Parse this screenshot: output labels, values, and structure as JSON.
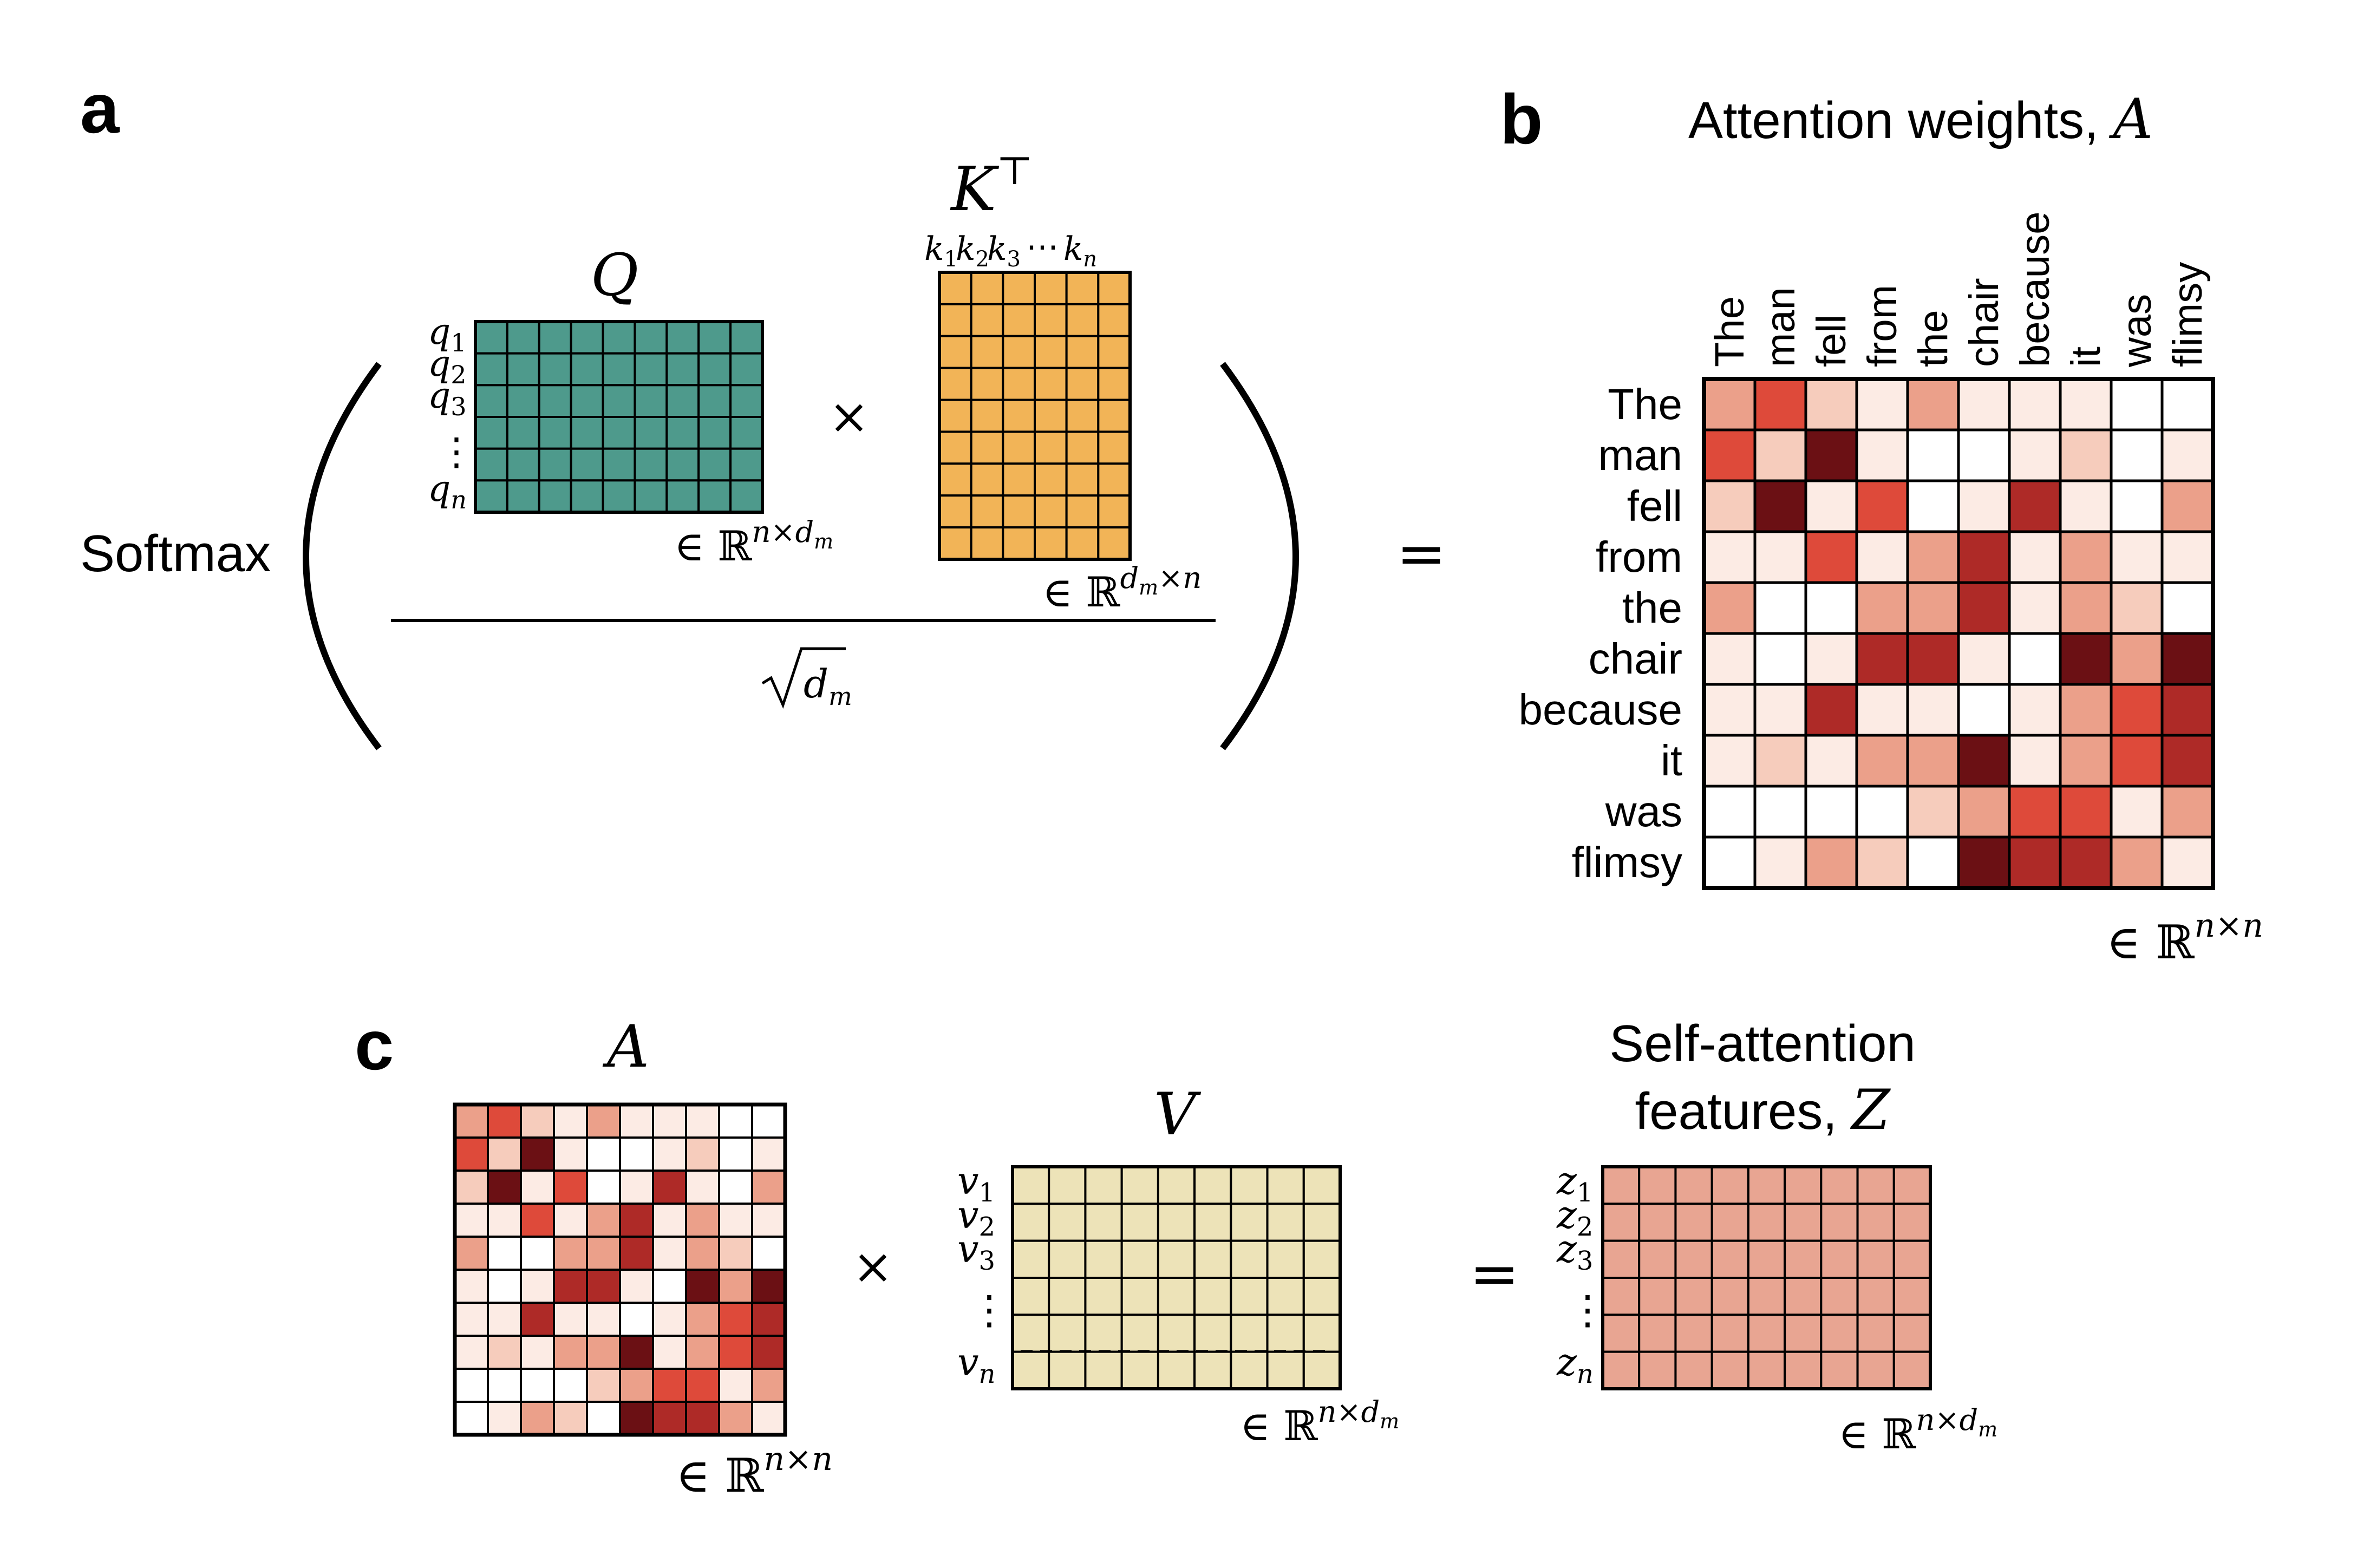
{
  "panels": {
    "a": {
      "letter": "a"
    },
    "b": {
      "letter": "b"
    },
    "c": {
      "letter": "c"
    }
  },
  "softmax": {
    "label": "Softmax"
  },
  "Q": {
    "label": "Q",
    "rows": 6,
    "cols": 9,
    "color": "#4E9A8C",
    "row_labels": [
      [
        "q",
        "1"
      ],
      [
        "q",
        "2"
      ],
      [
        "q",
        "3"
      ],
      [
        "⋮",
        ""
      ],
      [
        "q",
        "n"
      ]
    ],
    "dims": "∈ ℝ",
    "dims_sup": "n×d",
    "dims_sup_sub": "m"
  },
  "times_a": "×",
  "K": {
    "label": "K",
    "sup": "⊤",
    "rows": 9,
    "cols": 6,
    "color": "#F2B457",
    "col_labels": [
      [
        "k",
        "1"
      ],
      [
        "k",
        "2"
      ],
      [
        "k",
        "3"
      ],
      [
        "⋯",
        ""
      ],
      [
        "k",
        "n"
      ]
    ],
    "dims": "∈ ℝ",
    "dims_sup_a": "d",
    "dims_sup_sub": "m",
    "dims_sup_b": "×n"
  },
  "denominator": {
    "sqrt_symbol": "√",
    "var": "d",
    "sub": "m"
  },
  "equals_a": "=",
  "attention": {
    "title_text": "Attention weights, ",
    "title_var": "A",
    "tokens": [
      "The",
      "man",
      "fell",
      "from",
      "the",
      "chair",
      "because",
      "it",
      "was",
      "flimsy"
    ],
    "palette": [
      "#FFFFFF",
      "#FCEBE4",
      "#F6CCBC",
      "#EBA08A",
      "#DE4A3A",
      "#AE2A27",
      "#6B1014"
    ],
    "matrix": [
      [
        3,
        4,
        2,
        1,
        3,
        1,
        1,
        1,
        0,
        0
      ],
      [
        4,
        2,
        6,
        1,
        0,
        0,
        1,
        2,
        0,
        1
      ],
      [
        2,
        6,
        1,
        4,
        0,
        1,
        5,
        1,
        0,
        3
      ],
      [
        1,
        1,
        4,
        1,
        3,
        5,
        1,
        3,
        1,
        1
      ],
      [
        3,
        0,
        0,
        3,
        3,
        5,
        1,
        3,
        2,
        0
      ],
      [
        1,
        0,
        1,
        5,
        5,
        1,
        0,
        6,
        3,
        6
      ],
      [
        1,
        1,
        5,
        1,
        1,
        0,
        1,
        3,
        4,
        5
      ],
      [
        1,
        2,
        1,
        3,
        3,
        6,
        1,
        3,
        4,
        5
      ],
      [
        0,
        0,
        0,
        0,
        2,
        3,
        4,
        4,
        1,
        3
      ],
      [
        0,
        1,
        3,
        2,
        0,
        6,
        5,
        5,
        3,
        1
      ]
    ],
    "dims": "∈ ℝ",
    "dims_sup": "n×n"
  },
  "panel_c": {
    "A_label": "A",
    "A_dims": "∈ ℝ",
    "A_dims_sup": "n×n",
    "times": "×",
    "V": {
      "label": "V",
      "rows": 6,
      "cols": 9,
      "color": "#EDE3B8",
      "row_labels": [
        [
          "v",
          "1"
        ],
        [
          "v",
          "2"
        ],
        [
          "v",
          "3"
        ],
        [
          "⋮",
          ""
        ],
        [
          "v",
          "n"
        ]
      ],
      "dims": "∈ ℝ",
      "dims_sup": "n×d",
      "dims_sup_sub": "m"
    },
    "equals": "=",
    "Z": {
      "title_line1": "Self-attention",
      "title_line2_text": "features, ",
      "title_var": "Z",
      "rows": 6,
      "cols": 9,
      "color": "#E8A592",
      "row_labels": [
        [
          "z",
          "1"
        ],
        [
          "z",
          "2"
        ],
        [
          "z",
          "3"
        ],
        [
          "⋮",
          ""
        ],
        [
          "z",
          "n"
        ]
      ],
      "dims": "∈ ℝ",
      "dims_sup": "n×d",
      "dims_sup_sub": "m"
    }
  }
}
